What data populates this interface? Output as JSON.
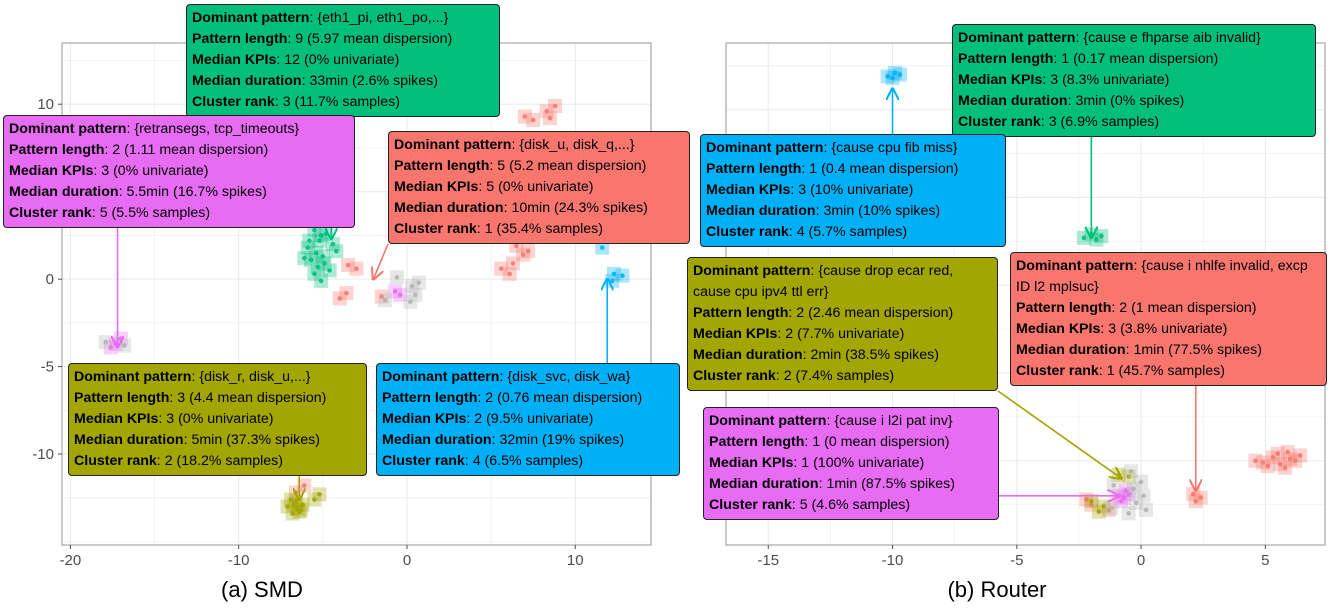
{
  "colors": {
    "red": "#f8766d",
    "olive": "#a3a500",
    "green": "#00bf7d",
    "blue": "#00b0f6",
    "magenta": "#e76bf3",
    "grey": "#b3b3b3",
    "grid": "#ebebeb",
    "panel_border": "#a6a6a6"
  },
  "chart_data": [
    {
      "type": "scatter",
      "caption": "(a) SMD",
      "xlabel": "",
      "ylabel": "",
      "xlim": [
        -20.5,
        14.5
      ],
      "ylim": [
        -15.2,
        13.5
      ],
      "x_ticks": [
        -20,
        -10,
        0,
        10
      ],
      "x_tick_labels": [
        "-20",
        "-10",
        "0",
        "10"
      ],
      "y_ticks": [
        -10,
        -5,
        0,
        5,
        10
      ],
      "y_tick_labels": [
        "-10",
        "-5",
        "0",
        "5",
        "10"
      ],
      "grid": true,
      "legend": "none",
      "clusters": [
        {
          "color": "red",
          "points": [
            [
              7.0,
              9.3
            ],
            [
              7.5,
              9.1
            ],
            [
              8.3,
              9.6
            ],
            [
              8.8,
              9.9
            ],
            [
              8.5,
              9.2
            ],
            [
              6.3,
              0.9
            ],
            [
              6.9,
              1.4
            ],
            [
              6.5,
              1.9
            ],
            [
              6.1,
              0.3
            ],
            [
              5.6,
              0.6
            ],
            [
              7.2,
              1.6
            ],
            [
              -3.0,
              0.6
            ],
            [
              -3.5,
              0.8
            ],
            [
              -4.0,
              -1.1
            ],
            [
              -3.6,
              -0.8
            ],
            [
              -1.5,
              -1.0
            ],
            [
              -6.1,
              -11.8
            ],
            [
              -6.6,
              -12.2
            ]
          ]
        },
        {
          "color": "olive",
          "points": [
            [
              -6.5,
              -13.1
            ],
            [
              -6.8,
              -13.4
            ],
            [
              -6.2,
              -12.9
            ],
            [
              -6.9,
              -12.6
            ],
            [
              -6.4,
              -13.3
            ],
            [
              -7.1,
              -13.0
            ],
            [
              -6.6,
              -12.7
            ],
            [
              -6.3,
              -13.2
            ],
            [
              -6.7,
              -12.9
            ],
            [
              -5.2,
              -12.3
            ],
            [
              -5.5,
              -12.6
            ]
          ]
        },
        {
          "color": "green",
          "points": [
            [
              -5.5,
              2.8
            ],
            [
              -5.1,
              2.5
            ],
            [
              -4.8,
              2.6
            ],
            [
              -5.2,
              2.2
            ],
            [
              -5.9,
              1.8
            ],
            [
              -5.4,
              1.5
            ],
            [
              -5.0,
              1.3
            ],
            [
              -4.9,
              0.9
            ],
            [
              -5.3,
              0.7
            ],
            [
              -5.7,
              1.1
            ],
            [
              -5.5,
              0.3
            ],
            [
              -4.6,
              0.5
            ],
            [
              -4.2,
              1.6
            ],
            [
              -4.4,
              2.0
            ],
            [
              -5.8,
              2.2
            ],
            [
              -6.1,
              1.2
            ],
            [
              -5.1,
              -0.1
            ]
          ]
        },
        {
          "color": "blue",
          "points": [
            [
              8.1,
              3.3
            ],
            [
              11.6,
              1.8
            ],
            [
              12.2,
              -0.1
            ],
            [
              12.8,
              0.2
            ],
            [
              12.3,
              0.3
            ]
          ]
        },
        {
          "color": "magenta",
          "points": [
            [
              -17.3,
              -3.7
            ],
            [
              -17.0,
              -3.4
            ],
            [
              -17.6,
              -3.9
            ],
            [
              -0.7,
              -0.7
            ],
            [
              -0.4,
              -0.9
            ]
          ]
        },
        {
          "color": "grey",
          "points": [
            [
              -17.9,
              -3.6
            ],
            [
              -16.8,
              -3.8
            ],
            [
              0.3,
              -0.4
            ],
            [
              0.5,
              -0.9
            ],
            [
              0.2,
              -1.3
            ],
            [
              0.7,
              -0.2
            ],
            [
              -1.3,
              -1.2
            ],
            [
              -0.6,
              0.1
            ]
          ]
        }
      ],
      "annotations": [
        {
          "color": "green",
          "dominant_pattern": "{eth1_pi, eth1_po,...}",
          "pattern_length": "9 (5.97 mean dispersion)",
          "median_kpis": "12 (0% univariate)",
          "median_duration": "33min (2.6% spikes)",
          "cluster_rank": "3 (11.7% samples)",
          "arrow_to": [
            -4.5,
            2.3
          ]
        },
        {
          "color": "magenta",
          "dominant_pattern": "{retransegs, tcp_timeouts}",
          "pattern_length": "2 (1.11 mean dispersion)",
          "median_kpis": "3 (0% univariate)",
          "median_duration": "5.5min (16.7% spikes)",
          "cluster_rank": "5 (5.5% samples)",
          "arrow_to": [
            -17.2,
            -3.9
          ]
        },
        {
          "color": "red",
          "dominant_pattern": "{disk_u, disk_q,...}",
          "pattern_length": "5 (5.2 mean dispersion)",
          "median_kpis": "5 (0% univariate)",
          "median_duration": "10min (24.3% spikes)",
          "cluster_rank": "1 (35.4% samples)",
          "arrow_to": [
            -2.0,
            0.0
          ]
        },
        {
          "color": "olive",
          "dominant_pattern": "{disk_r, disk_u,...}",
          "pattern_length": "3 (4.4 mean dispersion)",
          "median_kpis": "3 (0% univariate)",
          "median_duration": "5min (37.3% spikes)",
          "cluster_rank": "2 (18.2% samples)",
          "arrow_to": [
            -6.4,
            -12.6
          ]
        },
        {
          "color": "blue",
          "dominant_pattern": "{disk_svc, disk_wa}",
          "pattern_length": "2 (0.76 mean dispersion)",
          "median_kpis": "2 (9.5% univariate)",
          "median_duration": "32min (19% spikes)",
          "cluster_rank": "4 (6.5% samples)",
          "arrow_to": [
            11.9,
            0.0
          ]
        }
      ]
    },
    {
      "type": "scatter",
      "caption": "(b) Router",
      "xlabel": "",
      "ylabel": "",
      "xlim": [
        -16.7,
        7.4
      ],
      "ylim": [
        -14.8,
        13.8
      ],
      "x_ticks": [
        -15,
        -10,
        -5,
        0,
        5
      ],
      "x_tick_labels": [
        "-15",
        "-10",
        "-5",
        "0",
        "5"
      ],
      "y_ticks": [],
      "y_tick_labels": [],
      "grid": true,
      "legend": "none",
      "clusters": [
        {
          "color": "red",
          "points": [
            [
              4.9,
              -10.1
            ],
            [
              5.3,
              -9.8
            ],
            [
              5.6,
              -10.2
            ],
            [
              6.0,
              -9.9
            ],
            [
              5.8,
              -10.4
            ],
            [
              6.2,
              -10.0
            ],
            [
              5.5,
              -9.6
            ],
            [
              4.6,
              -10.0
            ],
            [
              6.4,
              -9.7
            ],
            [
              5.1,
              -10.3
            ],
            [
              5.9,
              -9.5
            ],
            [
              2.1,
              -11.9
            ],
            [
              2.4,
              -12.1
            ],
            [
              2.2,
              -12.3
            ],
            [
              -2.2,
              -12.2
            ],
            [
              -2.0,
              -12.5
            ],
            [
              -1.3,
              -12.8
            ]
          ]
        },
        {
          "color": "olive",
          "points": [
            [
              -2.0,
              -12.3
            ],
            [
              -0.9,
              -10.8
            ],
            [
              -0.5,
              -10.9
            ],
            [
              -1.7,
              -12.9
            ],
            [
              -1.5,
              -12.6
            ]
          ]
        },
        {
          "color": "green",
          "points": [
            [
              -2.3,
              2.7
            ],
            [
              -2.0,
              2.9
            ],
            [
              -1.8,
              2.6
            ],
            [
              -1.6,
              2.8
            ]
          ]
        },
        {
          "color": "blue",
          "points": [
            [
              -10.2,
              11.9
            ],
            [
              -9.9,
              12.1
            ],
            [
              -10.0,
              11.8
            ],
            [
              -9.7,
              12.0
            ]
          ]
        },
        {
          "color": "magenta",
          "points": [
            [
              -0.9,
              -12.0
            ],
            [
              -0.7,
              -12.1
            ],
            [
              -0.5,
              -11.9
            ],
            [
              -0.8,
              -12.3
            ],
            [
              -0.6,
              -11.7
            ]
          ]
        },
        {
          "color": "grey",
          "points": [
            [
              -0.3,
              -11.6
            ],
            [
              -0.2,
              -12.4
            ],
            [
              0.1,
              -12.0
            ],
            [
              -1.1,
              -11.4
            ],
            [
              -0.4,
              -10.6
            ],
            [
              0.0,
              -11.2
            ],
            [
              -1.2,
              -12.7
            ],
            [
              0.2,
              -12.8
            ],
            [
              -0.5,
              -13.0
            ]
          ]
        }
      ],
      "annotations": [
        {
          "color": "green",
          "dominant_pattern": "{cause e fhparse aib invalid}",
          "pattern_length": "1 (0.17 mean dispersion)",
          "median_kpis": "3 (8.3% univariate)",
          "median_duration": "3min (0% spikes)",
          "cluster_rank": "3 (6.9% samples)",
          "arrow_to": [
            -2.0,
            2.7
          ]
        },
        {
          "color": "blue",
          "dominant_pattern": "{cause cpu fib miss}",
          "pattern_length": "1 (0.4 mean dispersion)",
          "median_kpis": "3 (10% univariate)",
          "median_duration": "3min (10% spikes)",
          "cluster_rank": "4 (5.7% samples)",
          "arrow_to": [
            -10.0,
            11.2
          ]
        },
        {
          "color": "olive",
          "dominant_pattern": "{cause drop ecar red, cause cpu ipv4 ttl err}",
          "pattern_length": "2 (2.46 mean dispersion)",
          "median_kpis": "2 (7.7% univariate)",
          "median_duration": "2min (38.5% spikes)",
          "cluster_rank": "2 (7.4% samples)",
          "arrow_to": [
            -0.8,
            -11.0
          ]
        },
        {
          "color": "red",
          "dominant_pattern": "{cause i nhlfe invalid, excp ID l2 mplsuc}",
          "pattern_length": "2 (1 mean dispersion)",
          "median_kpis": "3 (3.8% univariate)",
          "median_duration": "1min (77.5% spikes)",
          "cluster_rank": "1 (45.7% samples)",
          "arrow_to": [
            2.2,
            -11.7
          ]
        },
        {
          "color": "magenta",
          "dominant_pattern": "{cause i l2i pat inv}",
          "pattern_length": "1 (0 mean dispersion)",
          "median_kpis": "1 (100% univariate)",
          "median_duration": "1min (87.5% spikes)",
          "cluster_rank": "5 (4.6% samples)",
          "arrow_to": [
            -0.9,
            -12.0
          ]
        }
      ]
    }
  ],
  "label_keys": {
    "dominant_pattern": "Dominant pattern",
    "pattern_length": "Pattern length",
    "median_kpis": "Median KPIs",
    "median_duration": "Median duration",
    "cluster_rank": "Cluster rank"
  }
}
